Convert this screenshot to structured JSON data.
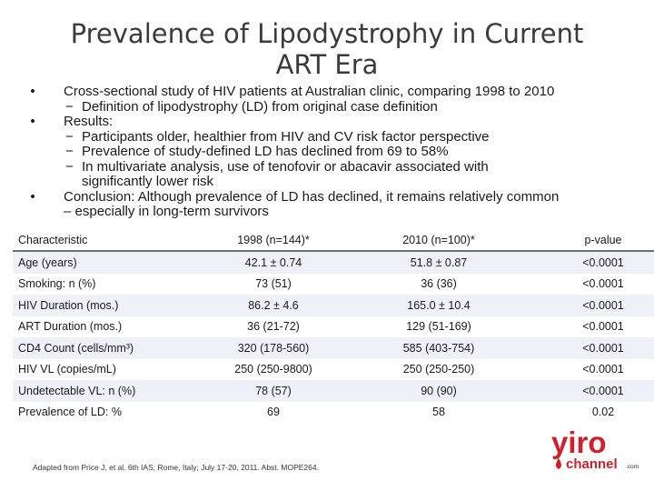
{
  "title": {
    "line1": "Prevalence of Lipodystrophy in Current",
    "line2": "ART Era"
  },
  "bullets": {
    "b1": "Cross-sectional study of HIV patients at Australian clinic, comparing 1998 to 2010",
    "b1_sub1": "Definition of lipodystrophy (LD) from original case definition",
    "b2": "Results:",
    "b2_sub1": "Participants older, healthier from HIV and CV risk factor perspective",
    "b2_sub2": "Prevalence of study-defined LD has declined from 69 to 58%",
    "b2_sub3_line1": "In multivariate analysis, use of tenofovir or abacavir associated with",
    "b2_sub3_line2": "significantly lower risk",
    "b3_line1": "Conclusion:  Although prevalence of LD has declined, it remains relatively common",
    "b3_line2": "– especially in long-term survivors",
    "bullet_glyph": "•",
    "dash_glyph": "−"
  },
  "table": {
    "headers": [
      "Characteristic",
      "1998 (n=144)*",
      "2010 (n=100)*",
      "p-value"
    ],
    "rows": [
      [
        "Age (years)",
        "42.1 ± 0.74",
        "51.8 ± 0.87",
        "<0.0001"
      ],
      [
        "Smoking: n (%)",
        "73 (51)",
        "36 (36)",
        "<0.0001"
      ],
      [
        "HIV Duration (mos.)",
        "86.2 ± 4.6",
        "165.0 ± 10.4",
        "<0.0001"
      ],
      [
        "ART Duration (mos.)",
        "36 (21-72)",
        "129 (51-169)",
        "<0.0001"
      ],
      [
        "CD4 Count (cells/mm³)",
        "320 (178-560)",
        "585 (403-754)",
        "<0.0001"
      ],
      [
        "HIV VL (copies/mL)",
        "250 (250-9800)",
        "250 (250-250)",
        "<0.0001"
      ],
      [
        "Undetectable VL: n (%)",
        "78 (57)",
        "90 (90)",
        "<0.0001"
      ],
      [
        "Prevalence of LD: %",
        "69",
        "58",
        "0.02"
      ]
    ]
  },
  "footnote": "Adapted from Price J, et al. 6th IAS; Rome, Italy; July 17-20, 2011. Abst. MOPE264.",
  "logo": {
    "word1": "yiro",
    "word2": "channel",
    "suffix": ".com",
    "color_red": "#d1202b"
  }
}
